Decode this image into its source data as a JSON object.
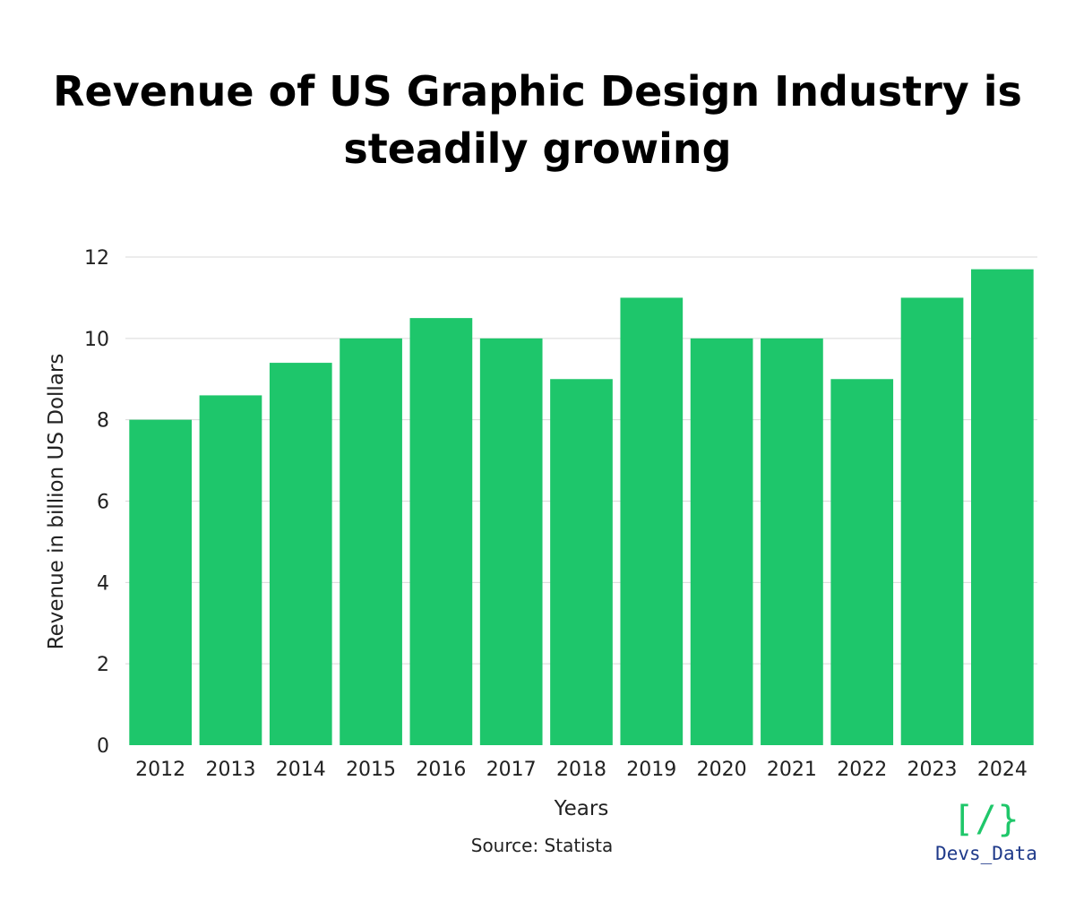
{
  "title_line1": "Revenue of US Graphic Design Industry is",
  "title_line2": "steadily growing",
  "source": "Source: Statista",
  "logo": {
    "mark": "[/}",
    "name": "Devs_Data"
  },
  "colors": {
    "bar": "#1ec66b",
    "grid": "#d9d9d9",
    "logo_mark": "#1fc76a",
    "logo_text": "#1f3a8a"
  },
  "chart_data": {
    "type": "bar",
    "title": "Revenue of US Graphic Design Industry is steadily growing",
    "xlabel": "Years",
    "ylabel": "Revenue in billion US Dollars",
    "categories": [
      "2012",
      "2013",
      "2014",
      "2015",
      "2016",
      "2017",
      "2018",
      "2019",
      "2020",
      "2021",
      "2022",
      "2023",
      "2024"
    ],
    "values": [
      8,
      8.6,
      9.4,
      10,
      10.5,
      10,
      9,
      11,
      10,
      10,
      9,
      11,
      11.7
    ],
    "ylim": [
      0,
      12
    ],
    "yticks": [
      0,
      2,
      4,
      6,
      8,
      10,
      12
    ],
    "grid": true,
    "legend": "none"
  }
}
